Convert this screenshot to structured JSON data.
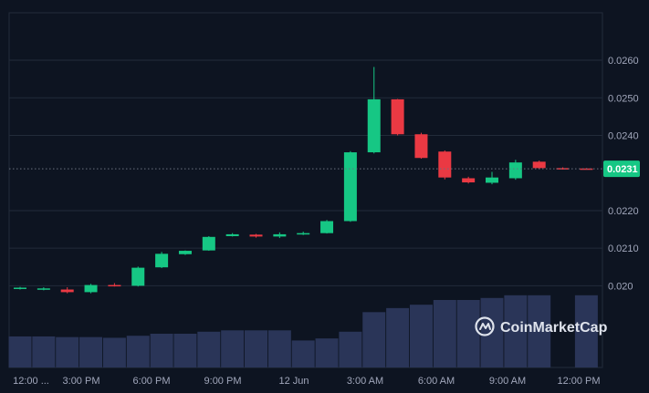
{
  "chart_data": {
    "type": "candlestick",
    "y_ticks": [
      "0.0260",
      "0.0250",
      "0.0240",
      "0.0220",
      "0.0210",
      "0.020"
    ],
    "y_tick_values": [
      0.026,
      0.025,
      0.024,
      0.022,
      0.021,
      0.02
    ],
    "ylim": [
      0.01967,
      0.02668
    ],
    "x_ticks": [
      "12:00 ...",
      "3:00 PM",
      "6:00 PM",
      "9:00 PM",
      "12 Jun",
      "3:00 AM",
      "6:00 AM",
      "9:00 AM",
      "12:00 PM"
    ],
    "current_price": 0.02311,
    "current_price_label": "0.0231",
    "grid": true,
    "candles": [
      {
        "o": 0.01993,
        "h": 0.01997,
        "l": 0.0199,
        "c": 0.01995
      },
      {
        "o": 0.01992,
        "h": 0.01996,
        "l": 0.01988,
        "c": 0.01993
      },
      {
        "o": 0.0199,
        "h": 0.01996,
        "l": 0.0198,
        "c": 0.01983
      },
      {
        "o": 0.01983,
        "h": 0.02005,
        "l": 0.0198,
        "c": 0.02002
      },
      {
        "o": 0.02002,
        "h": 0.02007,
        "l": 0.01998,
        "c": 0.02
      },
      {
        "o": 0.02,
        "h": 0.02051,
        "l": 0.01998,
        "c": 0.02048
      },
      {
        "o": 0.02049,
        "h": 0.0209,
        "l": 0.02047,
        "c": 0.02085
      },
      {
        "o": 0.02084,
        "h": 0.02094,
        "l": 0.02082,
        "c": 0.02093
      },
      {
        "o": 0.02094,
        "h": 0.02132,
        "l": 0.02093,
        "c": 0.0213
      },
      {
        "o": 0.02132,
        "h": 0.0214,
        "l": 0.02131,
        "c": 0.02137
      },
      {
        "o": 0.02136,
        "h": 0.02138,
        "l": 0.02128,
        "c": 0.02131
      },
      {
        "o": 0.02131,
        "h": 0.02142,
        "l": 0.02127,
        "c": 0.02137
      },
      {
        "o": 0.02137,
        "h": 0.02144,
        "l": 0.02135,
        "c": 0.0214
      },
      {
        "o": 0.0214,
        "h": 0.02175,
        "l": 0.02139,
        "c": 0.02172
      },
      {
        "o": 0.02172,
        "h": 0.02358,
        "l": 0.0217,
        "c": 0.02355
      },
      {
        "o": 0.02355,
        "h": 0.02582,
        "l": 0.02352,
        "c": 0.02496
      },
      {
        "o": 0.02496,
        "h": 0.02497,
        "l": 0.024,
        "c": 0.02403
      },
      {
        "o": 0.02403,
        "h": 0.02407,
        "l": 0.02338,
        "c": 0.0234
      },
      {
        "o": 0.02357,
        "h": 0.0236,
        "l": 0.02283,
        "c": 0.02288
      },
      {
        "o": 0.02286,
        "h": 0.0229,
        "l": 0.02272,
        "c": 0.02275
      },
      {
        "o": 0.02274,
        "h": 0.02303,
        "l": 0.0227,
        "c": 0.02288
      },
      {
        "o": 0.02286,
        "h": 0.02335,
        "l": 0.02282,
        "c": 0.02328
      },
      {
        "o": 0.0233,
        "h": 0.02333,
        "l": 0.0231,
        "c": 0.02313
      },
      {
        "o": 0.02313,
        "h": 0.02315,
        "l": 0.02309,
        "c": 0.02311
      },
      {
        "o": 0.02312,
        "h": 0.02313,
        "l": 0.02309,
        "c": 0.02311
      }
    ],
    "volume_relative": [
      0.46,
      0.46,
      0.45,
      0.45,
      0.44,
      0.47,
      0.5,
      0.5,
      0.53,
      0.55,
      0.55,
      0.55,
      0.4,
      0.43,
      0.53,
      0.82,
      0.88,
      0.93,
      1.0,
      1.0,
      1.03,
      1.07,
      1.07,
      0.0,
      1.07
    ]
  },
  "watermark": {
    "text": "CoinMarketCap"
  },
  "colors": {
    "background": "#0d1421",
    "up": "#16c784",
    "down": "#ea3943",
    "volume": "#2a3558",
    "grid": "#222b3a",
    "price_line": "#6b7280"
  }
}
